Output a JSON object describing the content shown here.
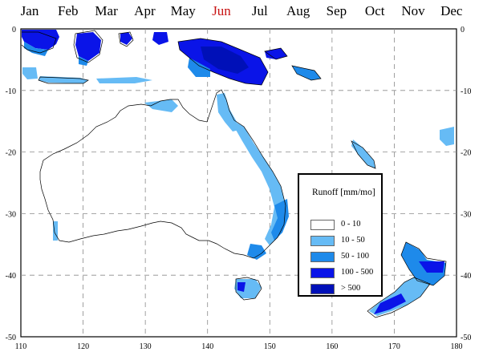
{
  "months": [
    {
      "label": "Jan",
      "active": false
    },
    {
      "label": "Feb",
      "active": false
    },
    {
      "label": "Mar",
      "active": false
    },
    {
      "label": "Apr",
      "active": false
    },
    {
      "label": "May",
      "active": false
    },
    {
      "label": "Jun",
      "active": true
    },
    {
      "label": "Jul",
      "active": false
    },
    {
      "label": "Aug",
      "active": false
    },
    {
      "label": "Sep",
      "active": false
    },
    {
      "label": "Oct",
      "active": false
    },
    {
      "label": "Nov",
      "active": false
    },
    {
      "label": "Dec",
      "active": false
    }
  ],
  "axes": {
    "lon_ticks": [
      "110",
      "120",
      "130",
      "140",
      "150",
      "160",
      "170",
      "180"
    ],
    "lat_ticks": [
      "0",
      "-10",
      "-20",
      "-30",
      "-40",
      "-50"
    ],
    "lon_range": [
      110,
      180
    ],
    "lat_range": [
      0,
      -50
    ]
  },
  "legend": {
    "title": "Runoff [mm/mo]",
    "classes": [
      {
        "label": "0  -  10",
        "color": "#ffffff"
      },
      {
        "label": "10  -  50",
        "color": "#66bbf5"
      },
      {
        "label": "50  -  100",
        "color": "#1e8aea"
      },
      {
        "label": "100  -  500",
        "color": "#0a14e8"
      },
      {
        "label": ">  500",
        "color": "#0010b8"
      }
    ]
  },
  "colors": {
    "coastline": "#000000",
    "grid": "#8a8a8a",
    "active_month": "#c81414"
  }
}
